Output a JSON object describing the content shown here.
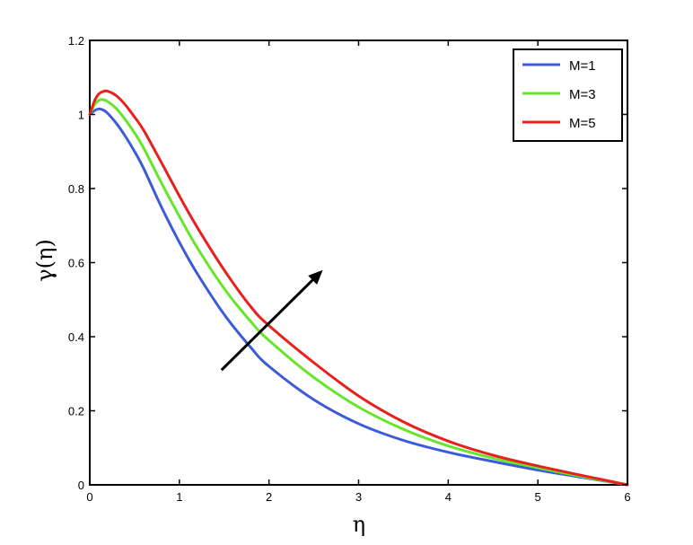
{
  "chart_data": {
    "type": "line",
    "title": "",
    "xlabel": "η",
    "ylabel": "γ(η)",
    "xlim": [
      0,
      6
    ],
    "ylim": [
      0,
      1.2
    ],
    "xticks": [
      "0",
      "1",
      "2",
      "3",
      "4",
      "5",
      "6"
    ],
    "yticks": [
      "0",
      "0.2",
      "0.4",
      "0.6",
      "0.8",
      "1",
      "1.2"
    ],
    "grid": false,
    "legend": "top-right",
    "x": [
      0,
      0.05,
      0.1,
      0.15,
      0.2,
      0.3,
      0.4,
      0.5,
      0.6,
      0.8,
      1.0,
      1.2,
      1.5,
      1.8,
      2.0,
      2.5,
      3.0,
      3.5,
      4.0,
      4.5,
      5.0,
      5.5,
      6.0
    ],
    "series": [
      {
        "name": "M=1",
        "color": "#3b5bdb",
        "values": [
          1.0,
          1.01,
          1.015,
          1.012,
          1.003,
          0.975,
          0.94,
          0.9,
          0.855,
          0.75,
          0.655,
          0.57,
          0.46,
          0.37,
          0.32,
          0.23,
          0.165,
          0.12,
          0.088,
          0.063,
          0.04,
          0.02,
          0.0
        ]
      },
      {
        "name": "M=3",
        "color": "#66e52a",
        "values": [
          1.0,
          1.025,
          1.038,
          1.04,
          1.035,
          1.015,
          0.985,
          0.95,
          0.91,
          0.815,
          0.725,
          0.64,
          0.53,
          0.44,
          0.39,
          0.29,
          0.21,
          0.15,
          0.105,
          0.072,
          0.046,
          0.022,
          0.0
        ]
      },
      {
        "name": "M=5",
        "color": "#e8201e",
        "values": [
          1.0,
          1.035,
          1.055,
          1.062,
          1.063,
          1.05,
          1.025,
          0.993,
          0.958,
          0.87,
          0.78,
          0.695,
          0.58,
          0.48,
          0.43,
          0.33,
          0.24,
          0.17,
          0.118,
          0.08,
          0.051,
          0.025,
          0.0
        ]
      }
    ],
    "annotations": [
      {
        "type": "arrow",
        "from": [
          1.47,
          0.31
        ],
        "to": [
          2.6,
          0.58
        ],
        "label": ""
      }
    ]
  }
}
